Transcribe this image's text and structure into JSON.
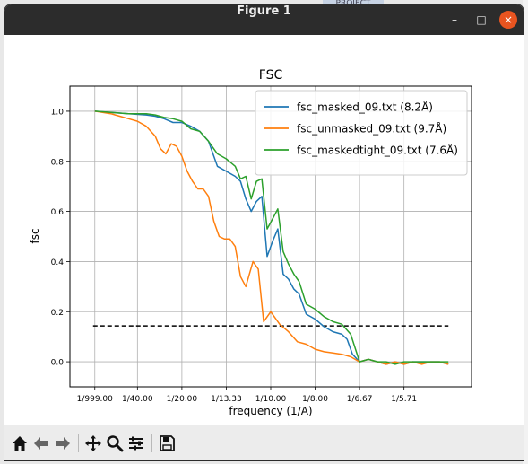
{
  "background": {
    "tab_text": "PROJECT"
  },
  "window": {
    "title": "Figure 1",
    "minimize_glyph": "–",
    "maximize_glyph": "□",
    "close_glyph": "×"
  },
  "toolbar": {
    "buttons": [
      {
        "name": "home",
        "icon": "home-icon"
      },
      {
        "name": "back",
        "icon": "back-arrow-icon"
      },
      {
        "name": "forward",
        "icon": "forward-arrow-icon"
      },
      {
        "name": "pan",
        "icon": "move-icon"
      },
      {
        "name": "zoom",
        "icon": "zoom-icon"
      },
      {
        "name": "configure",
        "icon": "sliders-icon"
      },
      {
        "name": "save",
        "icon": "save-icon"
      }
    ]
  },
  "chart_data": {
    "type": "line",
    "title": "FSC",
    "xlabel": "frequency (1/A)",
    "ylabel": "fsc",
    "xlim": [
      -0.013,
      0.213
    ],
    "ylim": [
      -0.1,
      1.1
    ],
    "grid": true,
    "legend_position": "top-right",
    "xticks": [
      {
        "value": 0.001,
        "label": "1/999.00"
      },
      {
        "value": 0.025,
        "label": "1/40.00"
      },
      {
        "value": 0.05,
        "label": "1/20.00"
      },
      {
        "value": 0.075,
        "label": "1/13.33"
      },
      {
        "value": 0.1,
        "label": "1/10.00"
      },
      {
        "value": 0.125,
        "label": "1/8.00"
      },
      {
        "value": 0.15,
        "label": "1/6.67"
      },
      {
        "value": 0.175,
        "label": "1/5.71"
      }
    ],
    "yticks": [
      0.0,
      0.2,
      0.4,
      0.6,
      0.8,
      1.0
    ],
    "threshold": {
      "y": 0.143,
      "x_range": [
        0.0,
        0.2
      ],
      "style": "dashed",
      "color": "#000000"
    },
    "series": [
      {
        "name": "fsc_masked_09.txt (8.2Å)",
        "color": "#1f77b4",
        "x": [
          0.001,
          0.01,
          0.02,
          0.03,
          0.035,
          0.04,
          0.045,
          0.05,
          0.055,
          0.06,
          0.065,
          0.07,
          0.075,
          0.08,
          0.083,
          0.086,
          0.089,
          0.092,
          0.095,
          0.098,
          0.101,
          0.104,
          0.107,
          0.11,
          0.113,
          0.116,
          0.12,
          0.125,
          0.13,
          0.135,
          0.14,
          0.143,
          0.146,
          0.15,
          0.155,
          0.16,
          0.165,
          0.17,
          0.175,
          0.18,
          0.185,
          0.19,
          0.195,
          0.2
        ],
        "y": [
          1.0,
          0.995,
          0.99,
          0.985,
          0.98,
          0.97,
          0.955,
          0.955,
          0.94,
          0.92,
          0.88,
          0.78,
          0.76,
          0.74,
          0.72,
          0.65,
          0.6,
          0.64,
          0.66,
          0.42,
          0.48,
          0.53,
          0.35,
          0.33,
          0.29,
          0.27,
          0.19,
          0.17,
          0.14,
          0.12,
          0.11,
          0.09,
          0.03,
          0.0,
          0.01,
          0.0,
          -0.01,
          0.0,
          -0.01,
          0.0,
          0.0,
          0.0,
          0.0,
          -0.01
        ]
      },
      {
        "name": "fsc_unmasked_09.txt (9.7Å)",
        "color": "#ff7f0e",
        "x": [
          0.001,
          0.01,
          0.015,
          0.02,
          0.025,
          0.03,
          0.035,
          0.038,
          0.041,
          0.044,
          0.047,
          0.05,
          0.053,
          0.056,
          0.059,
          0.062,
          0.065,
          0.068,
          0.071,
          0.074,
          0.077,
          0.08,
          0.083,
          0.086,
          0.09,
          0.093,
          0.096,
          0.1,
          0.105,
          0.11,
          0.115,
          0.12,
          0.125,
          0.13,
          0.135,
          0.14,
          0.145,
          0.15,
          0.155,
          0.16,
          0.165,
          0.17,
          0.175,
          0.18,
          0.185,
          0.19,
          0.195,
          0.2
        ],
        "y": [
          1.0,
          0.99,
          0.98,
          0.97,
          0.96,
          0.94,
          0.9,
          0.85,
          0.83,
          0.87,
          0.86,
          0.82,
          0.76,
          0.72,
          0.69,
          0.69,
          0.66,
          0.56,
          0.5,
          0.49,
          0.49,
          0.46,
          0.34,
          0.3,
          0.4,
          0.37,
          0.16,
          0.2,
          0.15,
          0.12,
          0.08,
          0.07,
          0.05,
          0.04,
          0.035,
          0.03,
          0.02,
          0.0,
          0.01,
          0.0,
          -0.01,
          0.0,
          -0.01,
          0.0,
          -0.01,
          0.0,
          0.0,
          -0.01
        ]
      },
      {
        "name": "fsc_maskedtight_09.txt (7.6Å)",
        "color": "#2ca02c",
        "x": [
          0.001,
          0.01,
          0.02,
          0.03,
          0.035,
          0.04,
          0.045,
          0.05,
          0.055,
          0.06,
          0.065,
          0.07,
          0.075,
          0.08,
          0.083,
          0.086,
          0.089,
          0.092,
          0.095,
          0.098,
          0.101,
          0.104,
          0.107,
          0.11,
          0.113,
          0.116,
          0.12,
          0.125,
          0.13,
          0.135,
          0.14,
          0.145,
          0.15,
          0.155,
          0.16,
          0.165,
          0.17,
          0.175,
          0.18,
          0.185,
          0.19,
          0.195,
          0.2
        ],
        "y": [
          1.0,
          0.995,
          0.99,
          0.99,
          0.985,
          0.975,
          0.97,
          0.96,
          0.93,
          0.92,
          0.88,
          0.83,
          0.81,
          0.78,
          0.73,
          0.74,
          0.65,
          0.72,
          0.73,
          0.53,
          0.57,
          0.61,
          0.44,
          0.39,
          0.35,
          0.32,
          0.23,
          0.21,
          0.18,
          0.16,
          0.15,
          0.11,
          0.0,
          0.01,
          0.0,
          0.0,
          -0.01,
          0.0,
          0.0,
          0.0,
          0.0,
          0.0,
          0.0
        ]
      }
    ]
  }
}
